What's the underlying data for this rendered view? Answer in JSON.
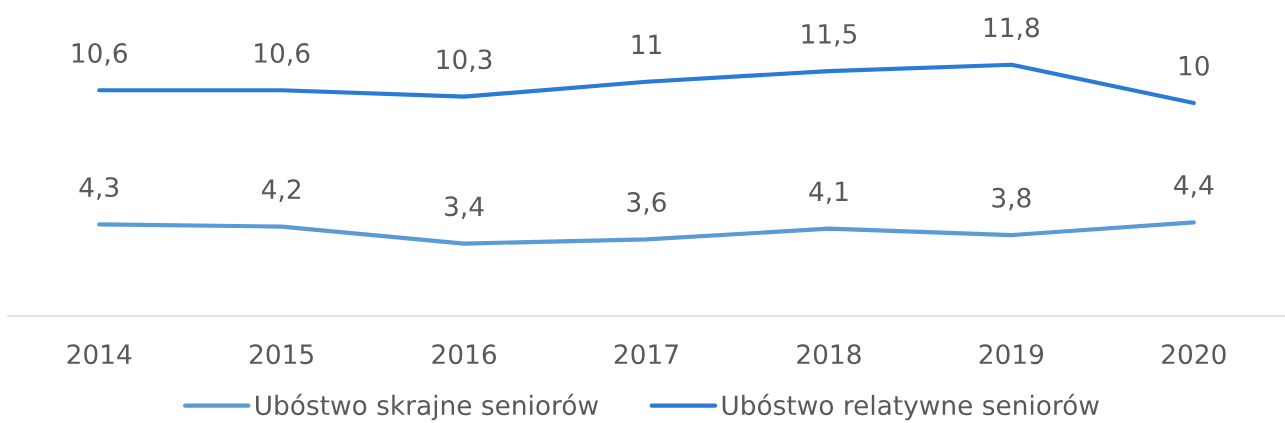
{
  "chart_data": {
    "type": "line",
    "categories": [
      "2014",
      "2015",
      "2016",
      "2017",
      "2018",
      "2019",
      "2020"
    ],
    "series": [
      {
        "name": "Ubóstwo skrajne seniorów",
        "color": "#5b9bd5",
        "values": [
          4.3,
          4.2,
          3.4,
          3.6,
          4.1,
          3.8,
          4.4
        ],
        "value_labels": [
          "4,3",
          "4,2",
          "3,4",
          "3,6",
          "4,1",
          "3,8",
          "4,4"
        ]
      },
      {
        "name": "Ubóstwo relatywne seniorów",
        "color": "#2a7bd6",
        "values": [
          10.6,
          10.6,
          10.3,
          11,
          11.5,
          11.8,
          10
        ],
        "value_labels": [
          "10,6",
          "10,6",
          "10,3",
          "11",
          "11,5",
          "11,8",
          "10"
        ]
      }
    ],
    "tick_labels": "x",
    "legend": "bottom",
    "marker": "none",
    "line_style": "solid"
  }
}
